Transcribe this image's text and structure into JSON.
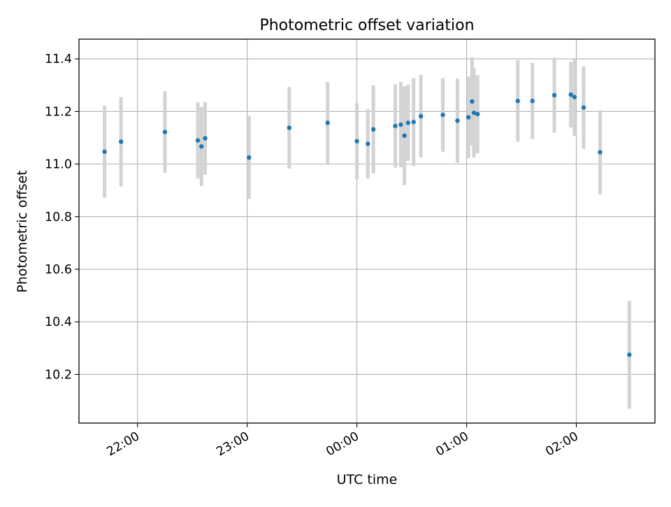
{
  "chart_data": {
    "type": "scatter",
    "title": "Photometric offset variation",
    "xlabel": "UTC time",
    "ylabel": "Photometric offset",
    "x_unit": "UTC clock time (HH:MM), spans midnight",
    "xlim": [
      "21:28",
      "02:43"
    ],
    "ylim": [
      10.015,
      11.475
    ],
    "x_ticks": [
      "22:00",
      "23:00",
      "00:00",
      "01:00",
      "02:00"
    ],
    "y_ticks": [
      "10.2",
      "10.4",
      "10.6",
      "10.8",
      "11.0",
      "11.2",
      "11.4"
    ],
    "grid": true,
    "point_color": "#1f77b4",
    "errorbar_color": "#d3d3d3",
    "series": [
      {
        "points": [
          {
            "x": "21:42",
            "y": 11.047,
            "err": 0.175
          },
          {
            "x": "21:51",
            "y": 11.085,
            "err": 0.17
          },
          {
            "x": "22:15",
            "y": 11.122,
            "err": 0.155
          },
          {
            "x": "22:33",
            "y": 11.09,
            "err": 0.145
          },
          {
            "x": "22:35",
            "y": 11.067,
            "err": 0.15
          },
          {
            "x": "22:37",
            "y": 11.098,
            "err": 0.138
          },
          {
            "x": "23:01",
            "y": 11.025,
            "err": 0.158
          },
          {
            "x": "23:23",
            "y": 11.138,
            "err": 0.155
          },
          {
            "x": "23:44",
            "y": 11.157,
            "err": 0.155
          },
          {
            "x": "00:00",
            "y": 11.087,
            "err": 0.145
          },
          {
            "x": "00:06",
            "y": 11.077,
            "err": 0.132
          },
          {
            "x": "00:09",
            "y": 11.132,
            "err": 0.167
          },
          {
            "x": "00:21",
            "y": 11.145,
            "err": 0.158
          },
          {
            "x": "00:24",
            "y": 11.15,
            "err": 0.162
          },
          {
            "x": "00:26",
            "y": 11.108,
            "err": 0.188
          },
          {
            "x": "00:28",
            "y": 11.157,
            "err": 0.145
          },
          {
            "x": "00:31",
            "y": 11.16,
            "err": 0.167
          },
          {
            "x": "00:35",
            "y": 11.182,
            "err": 0.157
          },
          {
            "x": "00:47",
            "y": 11.187,
            "err": 0.14
          },
          {
            "x": "00:55",
            "y": 11.165,
            "err": 0.16
          },
          {
            "x": "01:01",
            "y": 11.178,
            "err": 0.155
          },
          {
            "x": "01:03",
            "y": 11.238,
            "err": 0.168
          },
          {
            "x": "01:04",
            "y": 11.195,
            "err": 0.17
          },
          {
            "x": "01:06",
            "y": 11.19,
            "err": 0.148
          },
          {
            "x": "01:28",
            "y": 11.24,
            "err": 0.155
          },
          {
            "x": "01:36",
            "y": 11.24,
            "err": 0.145
          },
          {
            "x": "01:48",
            "y": 11.262,
            "err": 0.143
          },
          {
            "x": "01:57",
            "y": 11.264,
            "err": 0.125
          },
          {
            "x": "01:59",
            "y": 11.255,
            "err": 0.148
          },
          {
            "x": "02:04",
            "y": 11.215,
            "err": 0.157
          },
          {
            "x": "02:13",
            "y": 11.045,
            "err": 0.16
          },
          {
            "x": "02:29",
            "y": 10.275,
            "err": 0.205
          }
        ]
      }
    ]
  }
}
